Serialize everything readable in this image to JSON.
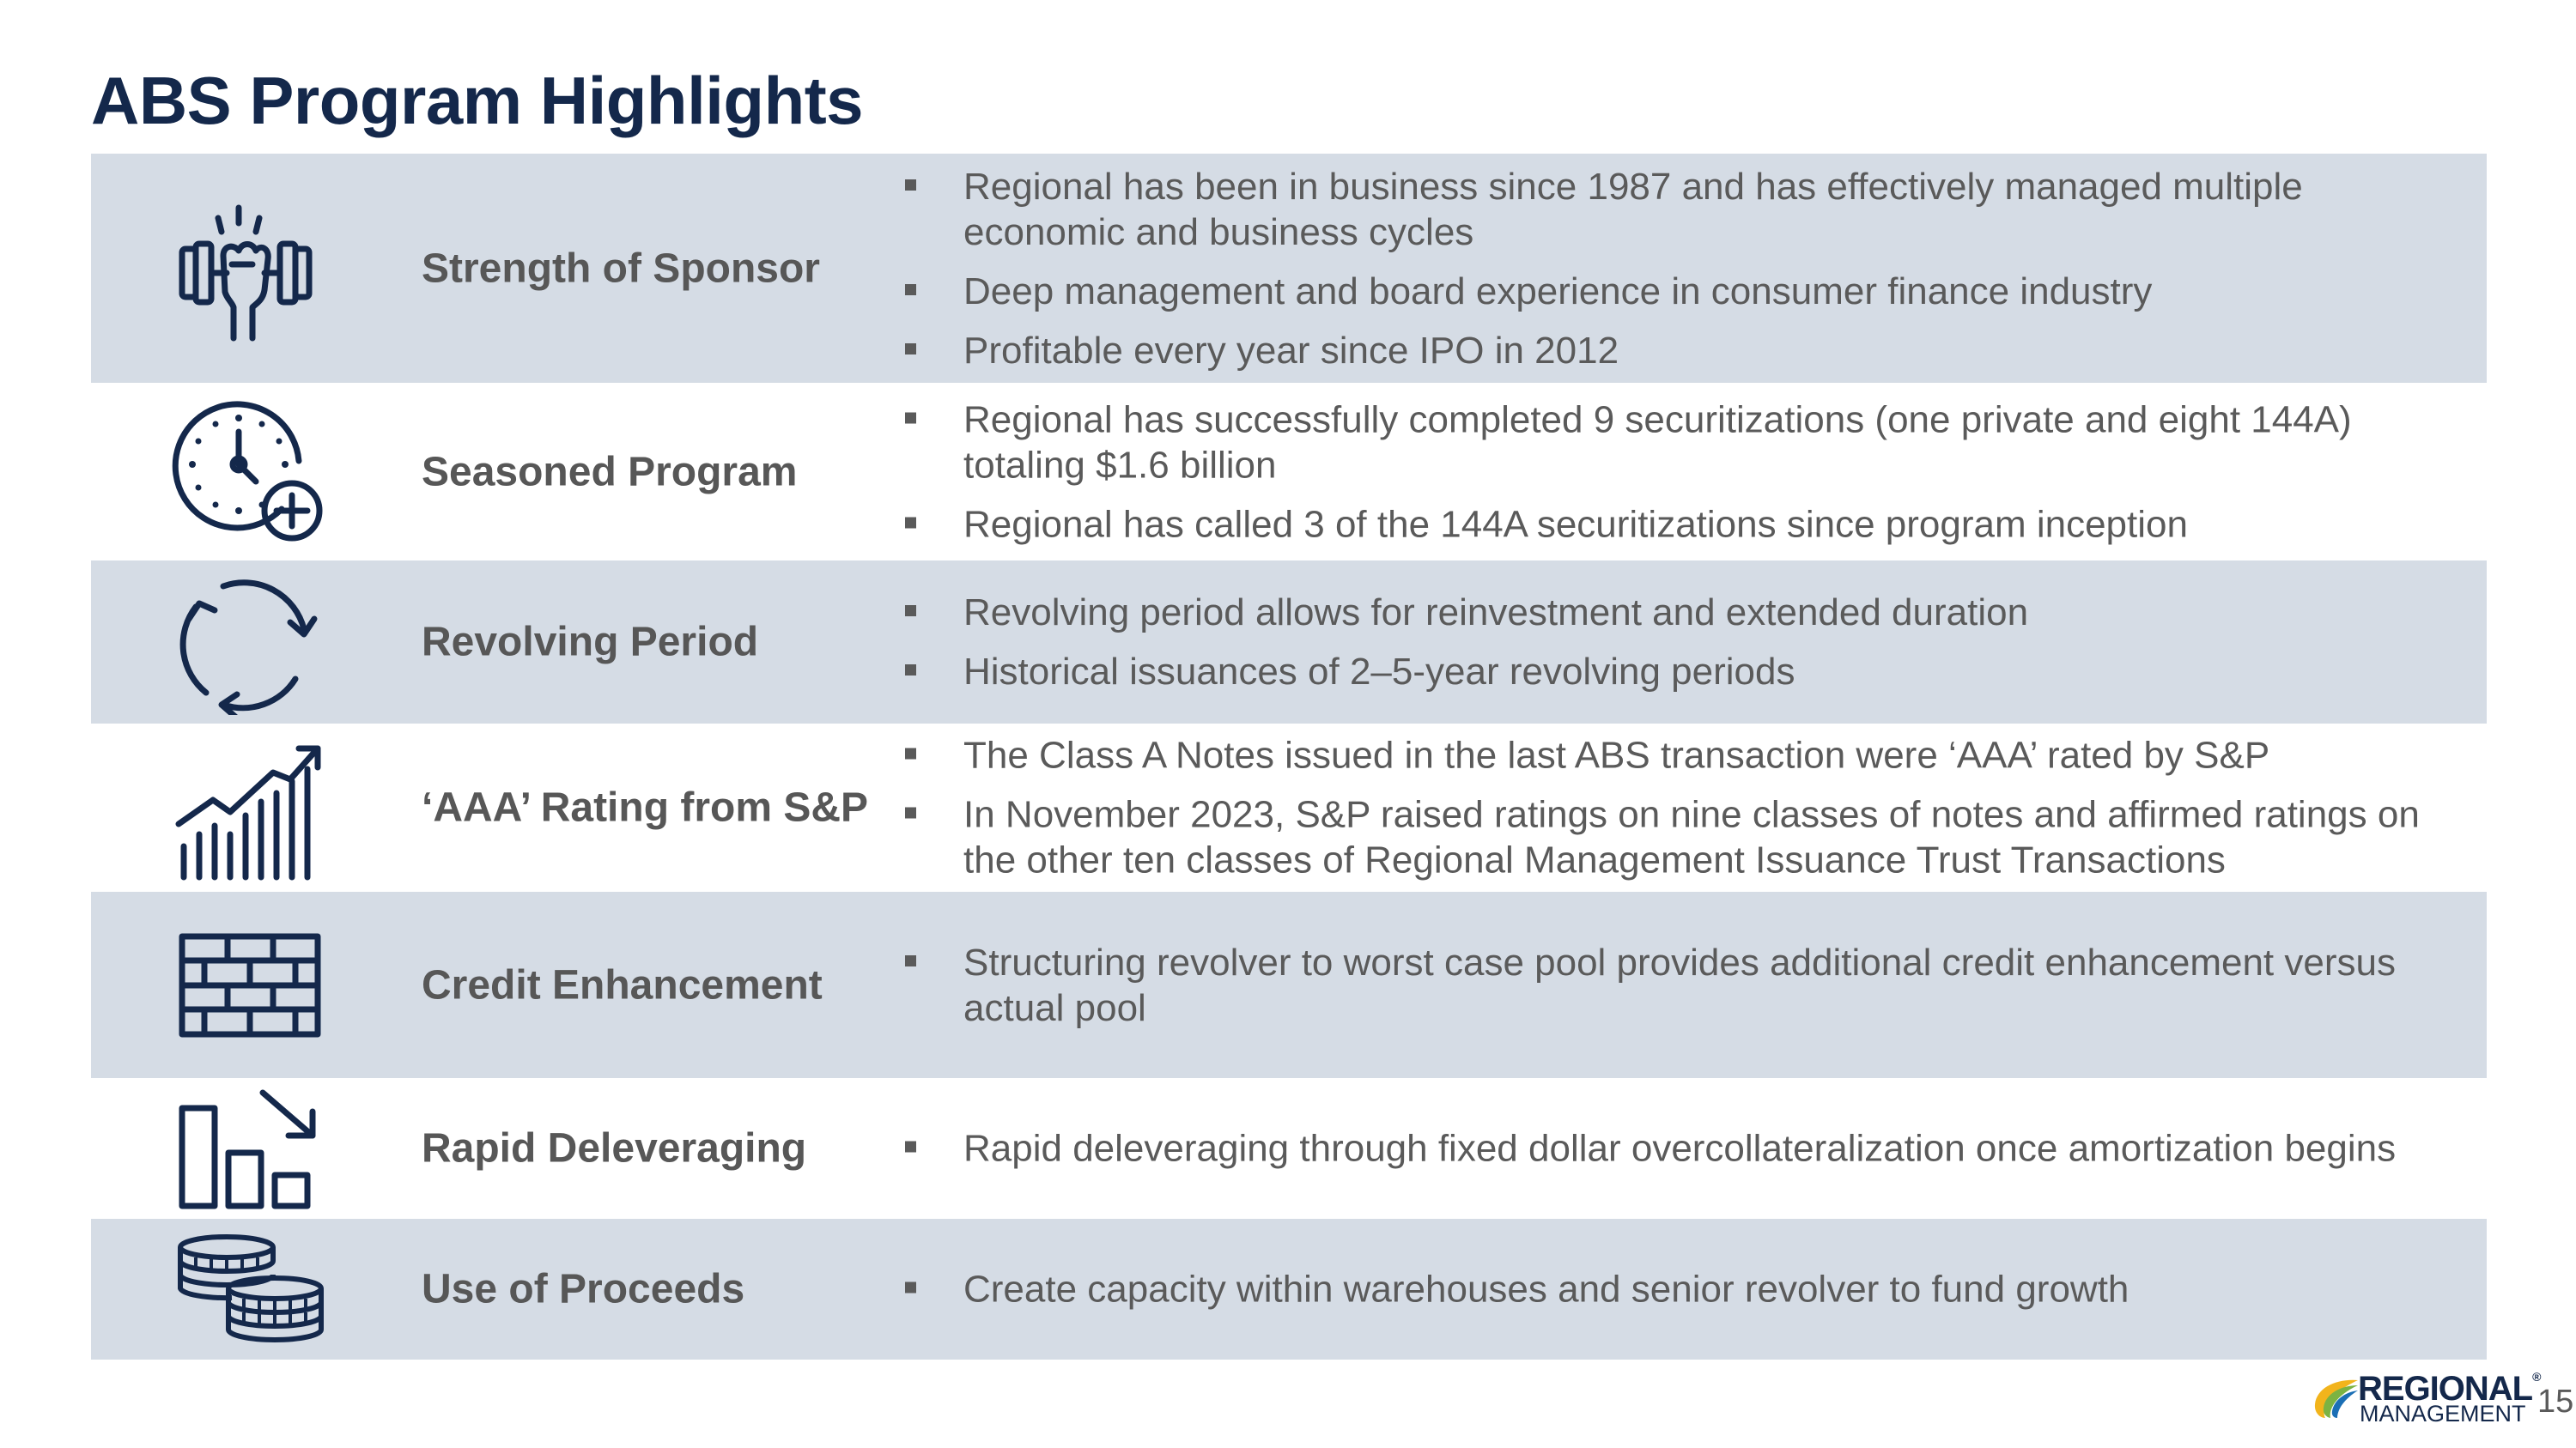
{
  "title": "ABS Program Highlights",
  "rows": [
    {
      "label": "Strength of Sponsor",
      "icon": "strength-dumbbell-icon",
      "bullets": [
        "Regional has been in business since 1987 and has effectively managed multiple economic and business cycles",
        "Deep management and board experience in consumer finance industry",
        "Profitable every year since IPO in 2012"
      ]
    },
    {
      "label": "Seasoned Program",
      "icon": "clock-plus-icon",
      "bullets": [
        "Regional has successfully completed 9 securitizations (one private and eight 144A) totaling $1.6 billion",
        "Regional has called 3 of the 144A securitizations since program inception"
      ]
    },
    {
      "label": "Revolving Period",
      "icon": "refresh-cycle-icon",
      "bullets": [
        "Revolving period allows for reinvestment and extended duration",
        "Historical issuances of 2–5-year revolving periods"
      ]
    },
    {
      "label": "‘AAA’ Rating from S&P",
      "icon": "growth-chart-icon",
      "bullets": [
        "The Class A Notes issued in the last ABS transaction were ‘AAA’ rated by S&P",
        "In November 2023, S&P raised ratings on nine classes of notes and affirmed ratings on the other ten classes of Regional Management Issuance Trust Transactions"
      ]
    },
    {
      "label": "Credit Enhancement",
      "icon": "brick-wall-icon",
      "bullets": [
        "Structuring revolver to worst case pool provides additional credit enhancement versus actual pool"
      ]
    },
    {
      "label": "Rapid Deleveraging",
      "icon": "declining-bars-icon",
      "bullets": [
        "Rapid deleveraging through fixed dollar overcollateralization once amortization begins"
      ]
    },
    {
      "label": "Use of Proceeds",
      "icon": "coin-stacks-icon",
      "bullets": [
        "Create capacity within warehouses and senior revolver to fund growth"
      ]
    }
  ],
  "logo": {
    "line1": "REGIONAL",
    "trademark": "®",
    "line2": "MANAGEMENT"
  },
  "page_number": "15",
  "colors": {
    "title": "#14284b",
    "shade": "#d5dce5",
    "text": "#5a5a5a",
    "icon": "#14284b"
  }
}
